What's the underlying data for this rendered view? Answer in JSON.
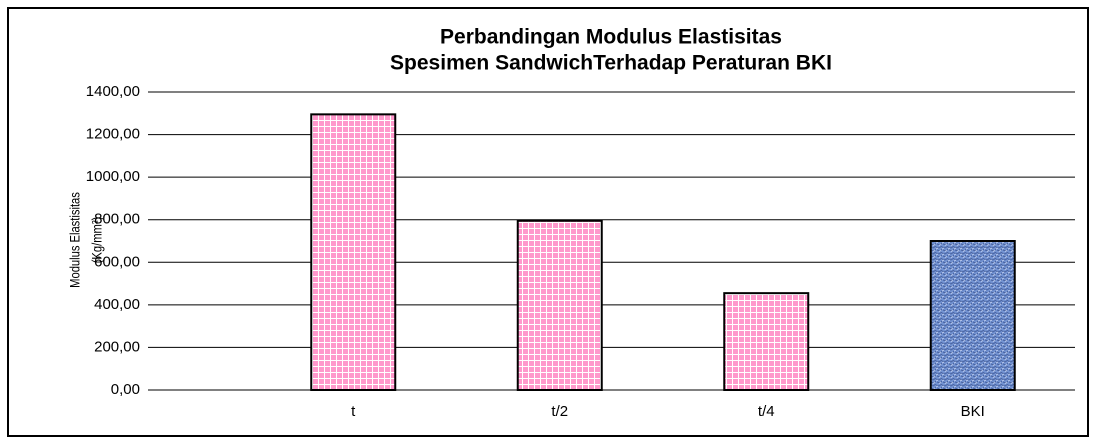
{
  "chart_data": {
    "type": "bar",
    "title": [
      "Perbandingan Modulus Elastisitas",
      "Spesimen SandwichTerhadap Peraturan BKI"
    ],
    "ylabel": [
      "Modulus Elastisitas",
      "(Kg/mm²)"
    ],
    "categories": [
      "t",
      "t/2",
      "t/4",
      "BKI"
    ],
    "values": [
      1295,
      795,
      455,
      700
    ],
    "colors": [
      "#ff99cc",
      "#ff99cc",
      "#ff99cc",
      "#7393d3"
    ],
    "ylim": [
      0,
      1400
    ],
    "yticks": [
      {
        "value": 0,
        "label": "0,00"
      },
      {
        "value": 200,
        "label": "200,00"
      },
      {
        "value": 400,
        "label": "400,00"
      },
      {
        "value": 600,
        "label": "600,00"
      },
      {
        "value": 800,
        "label": "800,00"
      },
      {
        "value": 1000,
        "label": "1000,00"
      },
      {
        "value": 1200,
        "label": "1200,00"
      },
      {
        "value": 1400,
        "label": "1400,00"
      }
    ],
    "grid": true
  }
}
